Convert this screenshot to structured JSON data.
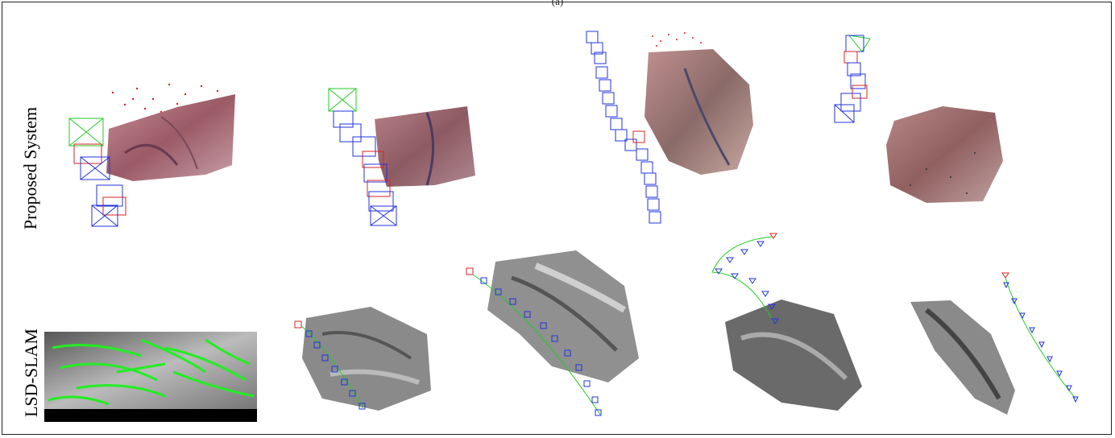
{
  "figure": {
    "top_caption": "(a)",
    "rows": [
      {
        "label": "Proposed System"
      },
      {
        "label": "LSD-SLAM"
      }
    ],
    "colors": {
      "keyframe_blue": "#2233dd",
      "keyframe_red": "#dd2222",
      "current_green": "#22cc22",
      "tissue_pink": "#b07078",
      "point_red": "#e02020",
      "depth_gray": "#777777",
      "lsd_green": "#22ee22"
    }
  }
}
